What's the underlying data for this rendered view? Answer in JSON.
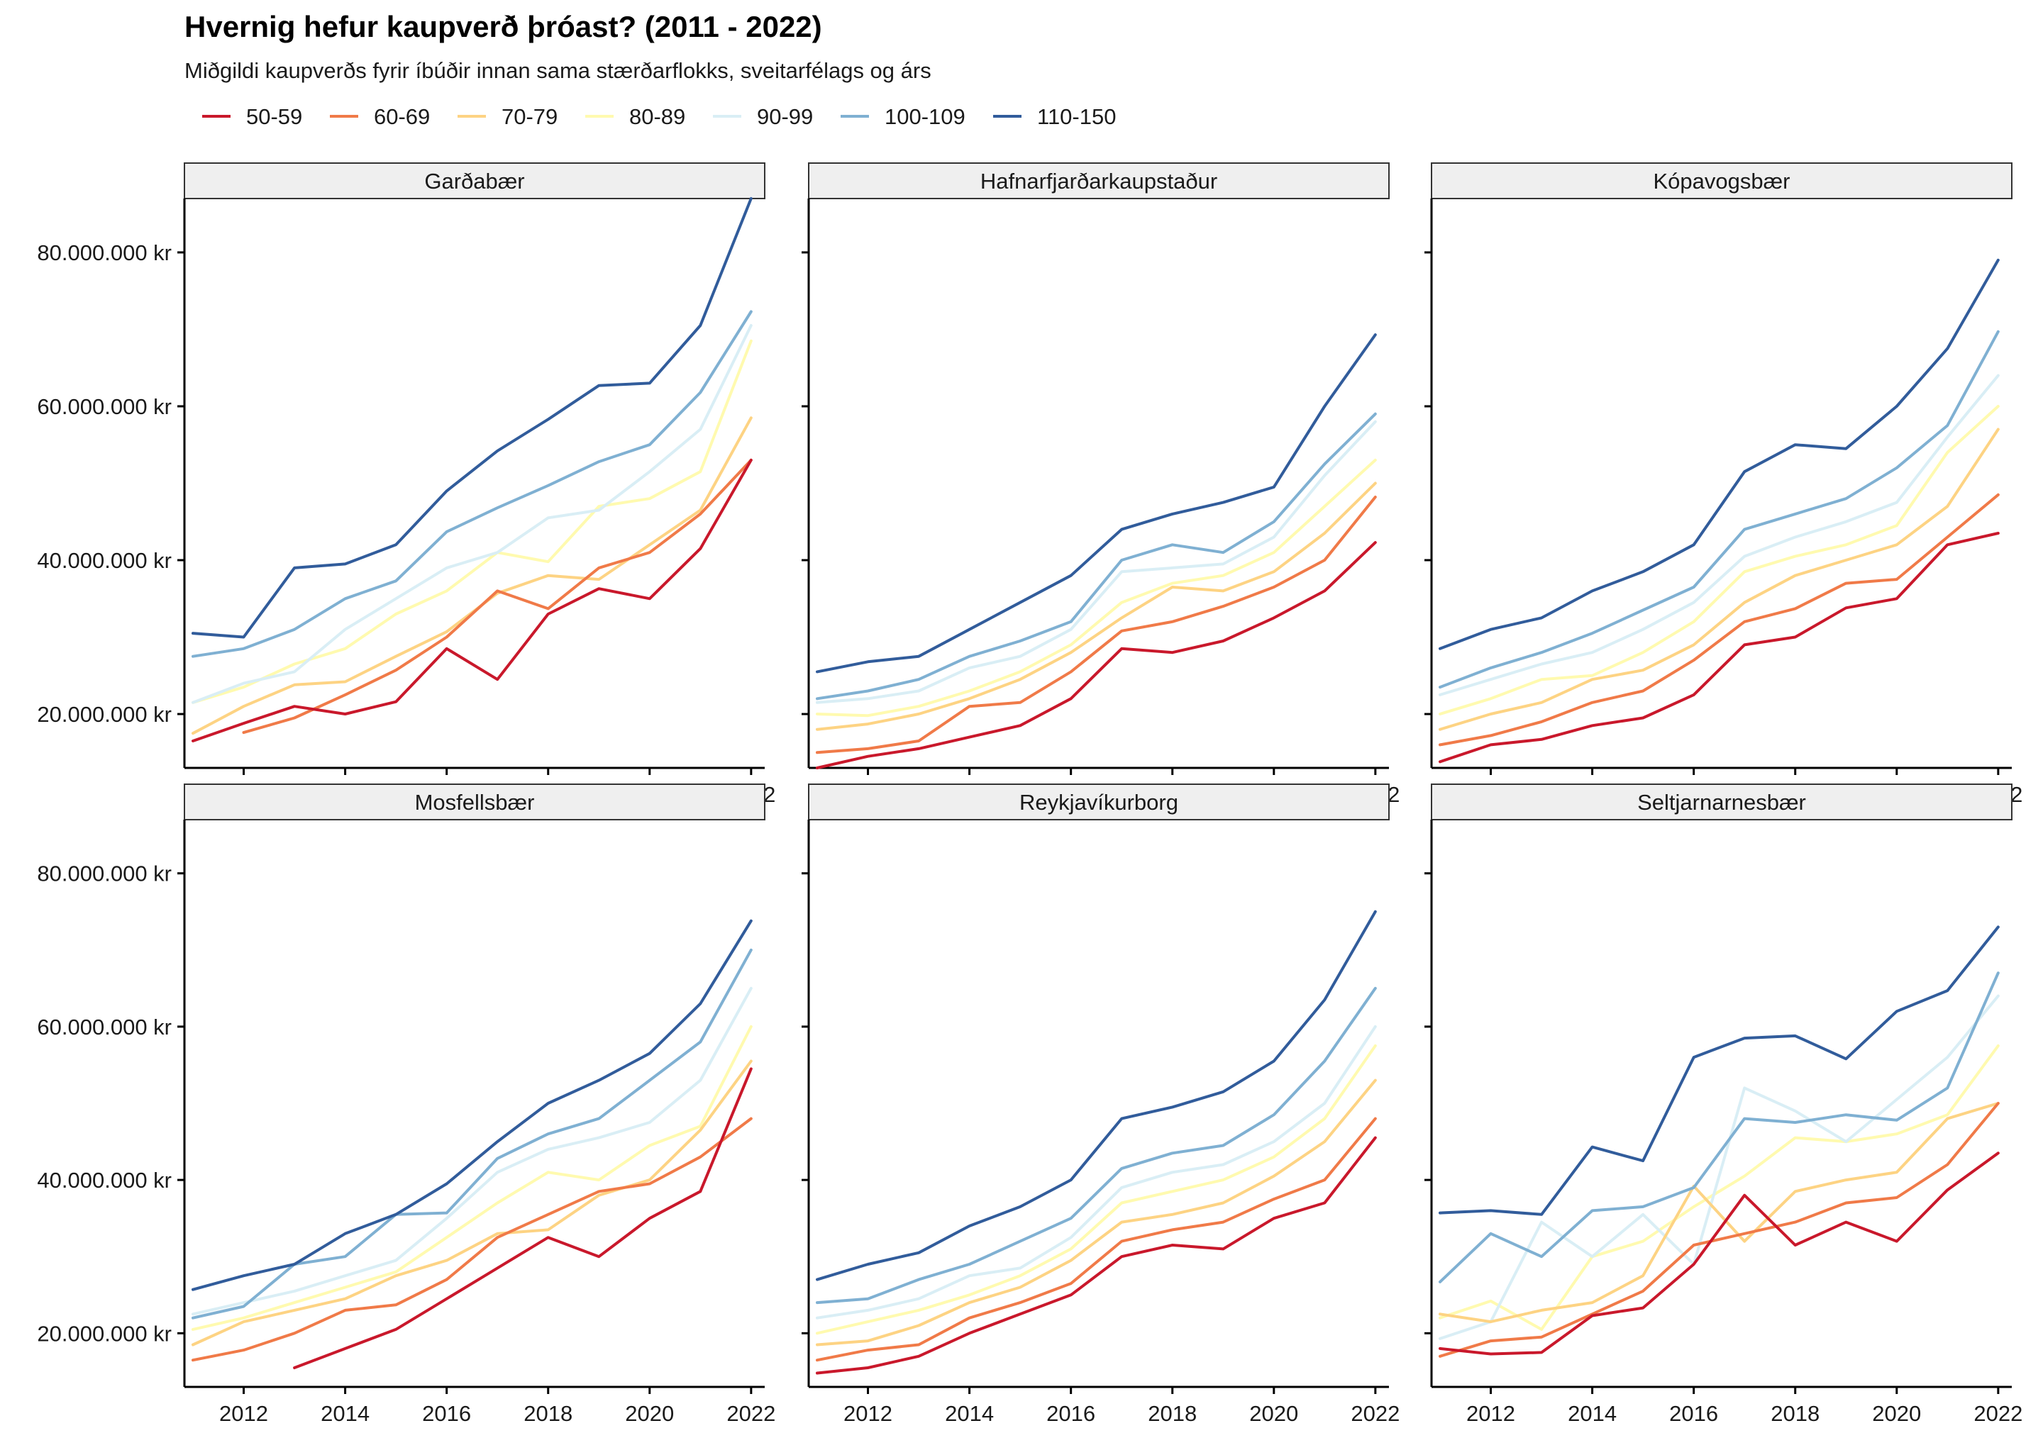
{
  "title": "Hvernig hefur kaupverð þróast? (2011 - 2022)",
  "subtitle": "Miðgildi kaupverðs fyrir íbúðir innan sama stærðarflokks, sveitarfélags og árs",
  "legend": [
    {
      "name": "50-59",
      "color": "#c9182b"
    },
    {
      "name": "60-69",
      "color": "#f07a48"
    },
    {
      "name": "70-79",
      "color": "#fdd383"
    },
    {
      "name": "80-89",
      "color": "#fffaaf"
    },
    {
      "name": "90-99",
      "color": "#d9eef5"
    },
    {
      "name": "100-109",
      "color": "#7fb0d2"
    },
    {
      "name": "110-150",
      "color": "#315c9b"
    }
  ],
  "chart_data": {
    "type": "line",
    "x": [
      2011,
      2012,
      2013,
      2014,
      2015,
      2016,
      2017,
      2018,
      2019,
      2020,
      2021,
      2022
    ],
    "xticks": [
      2012,
      2014,
      2016,
      2018,
      2020,
      2022
    ],
    "yticks": [
      20000000,
      40000000,
      60000000,
      80000000
    ],
    "ytick_labels": [
      "20.000.000 kr",
      "40.000.000 kr",
      "60.000.000 kr",
      "80.000.000 kr"
    ],
    "ylim": [
      13000000,
      87000000
    ],
    "xlim": [
      2011,
      2022.1
    ],
    "legend_position": "top-left",
    "grid": false,
    "panels": [
      {
        "name": "Garðabær",
        "series": [
          {
            "name": "50-59",
            "values": [
              16500000,
              18800000,
              21000000,
              20000000,
              21600000,
              28500000,
              24500000,
              33000000,
              36300000,
              35000000,
              41500000,
              53000000
            ]
          },
          {
            "name": "60-69",
            "values": [
              null,
              17600000,
              19500000,
              22500000,
              25700000,
              30000000,
              36000000,
              33700000,
              39000000,
              41000000,
              46000000,
              53000000
            ]
          },
          {
            "name": "70-79",
            "values": [
              17500000,
              21000000,
              23800000,
              24200000,
              27500000,
              30700000,
              35700000,
              38000000,
              37500000,
              42000000,
              46500000,
              58500000
            ]
          },
          {
            "name": "80-89",
            "values": [
              21500000,
              23500000,
              26500000,
              28500000,
              33000000,
              36000000,
              41000000,
              39800000,
              47000000,
              48000000,
              51500000,
              68500000
            ]
          },
          {
            "name": "90-99",
            "values": [
              21500000,
              24000000,
              25500000,
              31000000,
              35000000,
              39000000,
              41000000,
              45500000,
              46500000,
              51500000,
              57000000,
              70500000
            ]
          },
          {
            "name": "100-109",
            "values": [
              27500000,
              28500000,
              31000000,
              35000000,
              37300000,
              43700000,
              46800000,
              49700000,
              52800000,
              55000000,
              61800000,
              72300000
            ]
          },
          {
            "name": "110-150",
            "values": [
              30500000,
              30000000,
              39000000,
              39500000,
              42000000,
              49000000,
              54200000,
              58300000,
              62700000,
              63000000,
              70500000,
              87000000
            ]
          }
        ]
      },
      {
        "name": "Hafnarfjarðarkaupstaður",
        "series": [
          {
            "name": "50-59",
            "values": [
              13000000,
              14500000,
              15500000,
              17000000,
              18500000,
              22000000,
              28500000,
              28000000,
              29500000,
              32500000,
              36000000,
              42300000
            ]
          },
          {
            "name": "60-69",
            "values": [
              15000000,
              15500000,
              16500000,
              21000000,
              21500000,
              25500000,
              30800000,
              32000000,
              34000000,
              36500000,
              40000000,
              48200000
            ]
          },
          {
            "name": "70-79",
            "values": [
              18000000,
              18700000,
              20000000,
              22000000,
              24500000,
              28000000,
              32500000,
              36500000,
              36000000,
              38500000,
              43500000,
              50000000
            ]
          },
          {
            "name": "80-89",
            "values": [
              20000000,
              19800000,
              21000000,
              23000000,
              25500000,
              29000000,
              34500000,
              37000000,
              38000000,
              41000000,
              47000000,
              53000000
            ]
          },
          {
            "name": "90-99",
            "values": [
              21500000,
              22000000,
              23000000,
              26000000,
              27500000,
              31000000,
              38500000,
              39000000,
              39500000,
              43000000,
              51000000,
              58000000
            ]
          },
          {
            "name": "100-109",
            "values": [
              22000000,
              23000000,
              24500000,
              27500000,
              29500000,
              32000000,
              40000000,
              42000000,
              41000000,
              45000000,
              52500000,
              59000000
            ]
          },
          {
            "name": "110-150",
            "values": [
              25500000,
              26800000,
              27500000,
              31000000,
              34500000,
              38000000,
              44000000,
              46000000,
              47500000,
              49500000,
              60000000,
              69300000
            ]
          }
        ]
      },
      {
        "name": "Kópavogsbær",
        "series": [
          {
            "name": "50-59",
            "values": [
              13800000,
              16000000,
              16700000,
              18500000,
              19500000,
              22500000,
              29000000,
              30000000,
              33800000,
              35000000,
              42000000,
              43500000
            ]
          },
          {
            "name": "60-69",
            "values": [
              16000000,
              17200000,
              19000000,
              21500000,
              23000000,
              27000000,
              32000000,
              33700000,
              37000000,
              37500000,
              43000000,
              48500000
            ]
          },
          {
            "name": "70-79",
            "values": [
              18000000,
              20000000,
              21500000,
              24500000,
              25700000,
              29000000,
              34500000,
              38000000,
              40000000,
              42000000,
              47000000,
              57000000
            ]
          },
          {
            "name": "80-89",
            "values": [
              20000000,
              22000000,
              24500000,
              25000000,
              28000000,
              32000000,
              38500000,
              40500000,
              42000000,
              44500000,
              54000000,
              60000000
            ]
          },
          {
            "name": "90-99",
            "values": [
              22500000,
              24500000,
              26500000,
              28000000,
              31000000,
              34500000,
              40500000,
              43000000,
              45000000,
              47500000,
              56000000,
              64000000
            ]
          },
          {
            "name": "100-109",
            "values": [
              23500000,
              26000000,
              28000000,
              30500000,
              33500000,
              36500000,
              44000000,
              46000000,
              48000000,
              52000000,
              57500000,
              69700000
            ]
          },
          {
            "name": "110-150",
            "values": [
              28500000,
              31000000,
              32500000,
              36000000,
              38500000,
              42000000,
              51500000,
              55000000,
              54500000,
              60000000,
              67500000,
              79000000
            ]
          }
        ]
      },
      {
        "name": "Mosfellsbær",
        "series": [
          {
            "name": "50-59",
            "values": [
              null,
              null,
              15500000,
              18000000,
              20500000,
              24500000,
              28500000,
              32500000,
              30000000,
              35000000,
              38500000,
              54500000
            ]
          },
          {
            "name": "60-69",
            "values": [
              16500000,
              17800000,
              20000000,
              23000000,
              23700000,
              27000000,
              32500000,
              35500000,
              38500000,
              39500000,
              43000000,
              48000000
            ]
          },
          {
            "name": "70-79",
            "values": [
              18500000,
              21500000,
              23000000,
              24500000,
              27500000,
              29500000,
              33000000,
              33500000,
              38000000,
              40000000,
              46500000,
              55500000
            ]
          },
          {
            "name": "80-89",
            "values": [
              20500000,
              22000000,
              24000000,
              26000000,
              28000000,
              32500000,
              37000000,
              41000000,
              40000000,
              44500000,
              47000000,
              60000000
            ]
          },
          {
            "name": "90-99",
            "values": [
              22500000,
              24000000,
              25500000,
              27500000,
              29500000,
              35000000,
              41000000,
              44000000,
              45500000,
              47500000,
              53000000,
              65000000
            ]
          },
          {
            "name": "100-109",
            "values": [
              22000000,
              23500000,
              29000000,
              30000000,
              35500000,
              35700000,
              42800000,
              46000000,
              48000000,
              53000000,
              58000000,
              70000000
            ]
          },
          {
            "name": "110-150",
            "values": [
              25700000,
              27500000,
              29000000,
              33000000,
              35500000,
              39500000,
              45000000,
              50000000,
              53000000,
              56500000,
              63000000,
              73800000
            ]
          }
        ]
      },
      {
        "name": "Reykjavíkurborg",
        "series": [
          {
            "name": "50-59",
            "values": [
              14800000,
              15500000,
              17000000,
              20000000,
              22500000,
              25000000,
              30000000,
              31500000,
              31000000,
              35000000,
              37000000,
              45500000
            ]
          },
          {
            "name": "60-69",
            "values": [
              16500000,
              17800000,
              18500000,
              22000000,
              24000000,
              26500000,
              32000000,
              33500000,
              34500000,
              37500000,
              40000000,
              48000000
            ]
          },
          {
            "name": "70-79",
            "values": [
              18500000,
              19000000,
              21000000,
              24000000,
              26000000,
              29500000,
              34500000,
              35500000,
              37000000,
              40500000,
              45000000,
              53000000
            ]
          },
          {
            "name": "80-89",
            "values": [
              20000000,
              21500000,
              23000000,
              25000000,
              27500000,
              31000000,
              37000000,
              38500000,
              40000000,
              43000000,
              48000000,
              57500000
            ]
          },
          {
            "name": "90-99",
            "values": [
              22000000,
              23000000,
              24500000,
              27500000,
              28500000,
              32500000,
              39000000,
              41000000,
              42000000,
              45000000,
              50000000,
              60000000
            ]
          },
          {
            "name": "100-109",
            "values": [
              24000000,
              24500000,
              27000000,
              29000000,
              32000000,
              35000000,
              41500000,
              43500000,
              44500000,
              48500000,
              55500000,
              65000000
            ]
          },
          {
            "name": "110-150",
            "values": [
              27000000,
              29000000,
              30500000,
              34000000,
              36500000,
              40000000,
              48000000,
              49500000,
              51500000,
              55500000,
              63500000,
              75000000
            ]
          }
        ]
      },
      {
        "name": "Seltjarnarnesbær",
        "series": [
          {
            "name": "50-59",
            "values": [
              18000000,
              17300000,
              17500000,
              22300000,
              23300000,
              29000000,
              38000000,
              31500000,
              34500000,
              32000000,
              38700000,
              43500000
            ]
          },
          {
            "name": "60-69",
            "values": [
              17000000,
              19000000,
              19500000,
              22500000,
              25500000,
              31500000,
              33000000,
              34500000,
              37000000,
              37700000,
              42000000,
              50000000
            ]
          },
          {
            "name": "70-79",
            "values": [
              22500000,
              21500000,
              23000000,
              24000000,
              27500000,
              39200000,
              32000000,
              38500000,
              40000000,
              41000000,
              48000000,
              50000000
            ]
          },
          {
            "name": "80-89",
            "values": [
              22000000,
              24200000,
              20500000,
              30000000,
              32000000,
              36500000,
              40500000,
              45500000,
              45000000,
              46000000,
              48500000,
              57500000
            ]
          },
          {
            "name": "90-99",
            "values": [
              19300000,
              21500000,
              34500000,
              30000000,
              35500000,
              29000000,
              52000000,
              49000000,
              45000000,
              50500000,
              56000000,
              64000000
            ]
          },
          {
            "name": "100-109",
            "values": [
              26700000,
              33000000,
              30000000,
              36000000,
              36500000,
              39000000,
              48000000,
              47500000,
              48500000,
              47800000,
              52000000,
              67000000
            ]
          },
          {
            "name": "110-150",
            "values": [
              35700000,
              36000000,
              35500000,
              44300000,
              42500000,
              56000000,
              58500000,
              58800000,
              55800000,
              62000000,
              64700000,
              73000000
            ]
          }
        ]
      }
    ]
  }
}
